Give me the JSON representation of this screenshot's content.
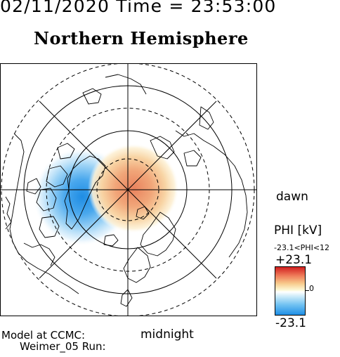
{
  "header": {
    "date_time": "02/11/2020 Time = 23:53:00",
    "hemisphere": "Northern Hemisphere"
  },
  "labels": {
    "dawn": "dawn",
    "midnight": "midnight",
    "model": "Model at CCMC:",
    "run": "Weimer_05 Run:"
  },
  "colorbar": {
    "title": "PHI [kV]",
    "range_text": "-23.1<PHI<12",
    "max_label": "+23.1",
    "zero_label": "0",
    "min_label": "-23.1",
    "colors": [
      "#d11f1f",
      "#ef7b59",
      "#f7c98a",
      "#ffffff",
      "#75c4f2",
      "#1e8fe6"
    ]
  },
  "map": {
    "projection": "polar-stereographic",
    "pattern": "two-cell potential: negative cell (blue) on left, positive cell (red/orange) center"
  }
}
